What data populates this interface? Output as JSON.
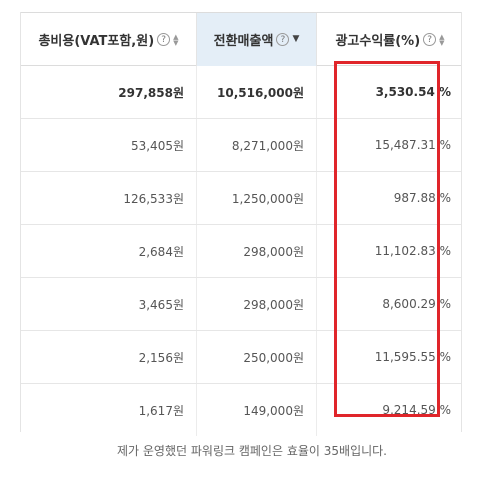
{
  "table": {
    "headers": [
      {
        "label": "총비용(VAT포함,원)",
        "sort": "both"
      },
      {
        "label": "전환매출액",
        "sort": "desc"
      },
      {
        "label": "광고수익률(%)",
        "sort": "both"
      }
    ],
    "help_glyph": "?",
    "total": {
      "cost": "297,858원",
      "sales": "10,516,000원",
      "roas": "3,530.54 %"
    },
    "rows": [
      {
        "cost": "53,405원",
        "sales": "8,271,000원",
        "roas": "15,487.31 %"
      },
      {
        "cost": "126,533원",
        "sales": "1,250,000원",
        "roas": "987.88 %"
      },
      {
        "cost": "2,684원",
        "sales": "298,000원",
        "roas": "11,102.83 %"
      },
      {
        "cost": "3,465원",
        "sales": "298,000원",
        "roas": "8,600.29 %"
      },
      {
        "cost": "2,156원",
        "sales": "250,000원",
        "roas": "11,595.55 %"
      },
      {
        "cost": "1,617원",
        "sales": "149,000원",
        "roas": "9,214.59 %"
      }
    ]
  },
  "highlight_color": "#e0252a",
  "caption": "제가 운영했던 파워링크 캠페인은 효율이 35배입니다."
}
